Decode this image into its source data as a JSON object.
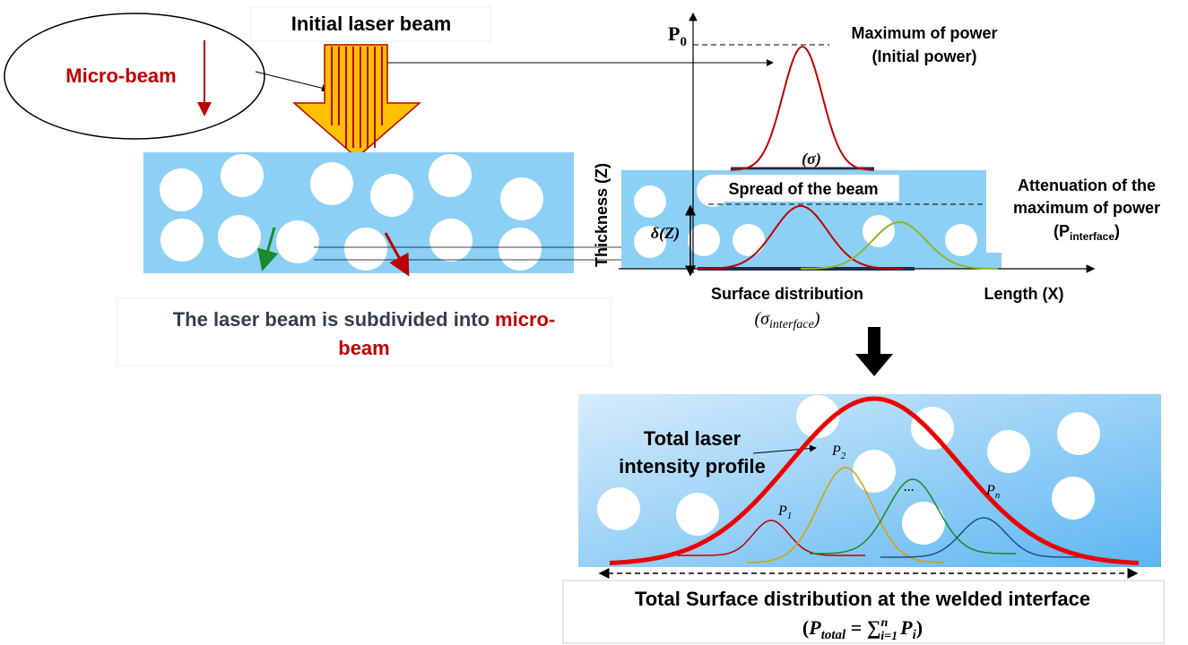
{
  "initial_beam": {
    "label": "Initial laser beam"
  },
  "micro_beam": {
    "label": "Micro-beam"
  },
  "graph": {
    "p0": {
      "symbol": "P",
      "subscript": "0"
    },
    "max_power": [
      "Maximum of power",
      "(Initial power)"
    ],
    "sigma": "(σ)",
    "spread": "Spread of the beam",
    "y_axis": "Thickness (Z)",
    "delta": "δ(Z)",
    "attenuation": {
      "lines": [
        "Attenuation of the",
        "maximum of power"
      ],
      "open": "(P",
      "subscript": "interface",
      "close": ")"
    },
    "surface": {
      "label": "Surface distribution",
      "open": "(σ",
      "subscript": "interface",
      "close": ")"
    },
    "x_axis": "Length (X)"
  },
  "caption": {
    "text": "The laser beam is subdivided into",
    "highlight_1": "micro-",
    "highlight_2": "beam"
  },
  "total": {
    "profile_lines": [
      "Total  laser",
      "intensity profile"
    ],
    "peaks": [
      {
        "symbol": "P",
        "subscript": "1"
      },
      {
        "symbol": "P",
        "subscript": "2"
      },
      {
        "symbol": "..."
      },
      {
        "symbol": "P",
        "subscript": "n"
      }
    ],
    "title": "Total Surface distribution at the welded interface",
    "formula": {
      "open": "(",
      "p": "P",
      "total": "total",
      "eq": " = ",
      "sum": "∑",
      "lower": "i=1",
      "upper": "n",
      "pi": "P",
      "i": "i",
      "close": ")"
    }
  }
}
